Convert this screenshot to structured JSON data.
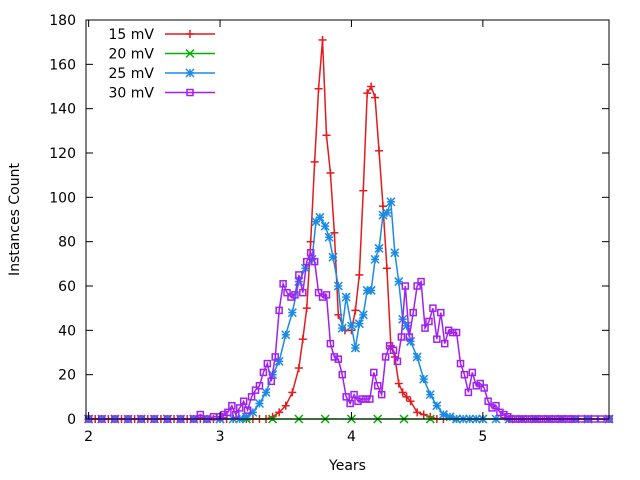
{
  "chart_data": {
    "type": "line",
    "title": "",
    "xlabel": "Years",
    "ylabel": "Instances Count",
    "xlim": [
      1.98,
      5.96
    ],
    "ylim": [
      0,
      180
    ],
    "x_ticks": [
      2,
      3,
      4,
      5
    ],
    "y_ticks": [
      0,
      20,
      40,
      60,
      80,
      100,
      120,
      140,
      160,
      180
    ],
    "grid": false,
    "legend_position": "top-left",
    "series": [
      {
        "name": "15 mV",
        "color": "#e41a1c",
        "marker": "plus",
        "x": [
          2.0,
          2.05,
          2.1,
          2.15,
          2.2,
          2.25,
          2.3,
          2.35,
          2.4,
          2.45,
          2.5,
          2.55,
          2.6,
          2.65,
          2.7,
          2.75,
          2.8,
          2.85,
          2.9,
          2.95,
          3.0,
          3.05,
          3.1,
          3.15,
          3.2,
          3.25,
          3.3,
          3.35,
          3.4,
          3.45,
          3.5,
          3.55,
          3.6,
          3.63,
          3.66,
          3.69,
          3.72,
          3.75,
          3.78,
          3.81,
          3.84,
          3.87,
          3.9,
          3.95,
          4.0,
          4.03,
          4.06,
          4.09,
          4.12,
          4.15,
          4.18,
          4.21,
          4.24,
          4.27,
          4.3,
          4.33,
          4.36,
          4.39,
          4.42,
          4.45,
          4.5,
          4.55,
          4.6,
          4.65,
          4.7,
          4.8,
          4.9,
          5.0,
          5.2,
          5.4,
          5.6,
          5.8,
          5.96
        ],
        "y": [
          0,
          0,
          0,
          0,
          0,
          0,
          0,
          0,
          0,
          0,
          0,
          0,
          0,
          0,
          0,
          0,
          0,
          0,
          0,
          0,
          0,
          0,
          0,
          0,
          0,
          0,
          0,
          0,
          1,
          3,
          6,
          12,
          23,
          36,
          50,
          80,
          116,
          149,
          171,
          128,
          111,
          84,
          47,
          40,
          40,
          49,
          65,
          103,
          147,
          150,
          145,
          121,
          96,
          68,
          33,
          28,
          16,
          12,
          10,
          8,
          3,
          2,
          1,
          0,
          0,
          0,
          0,
          0,
          0,
          0,
          0,
          0,
          0
        ]
      },
      {
        "name": "20 mV",
        "color": "#00b000",
        "marker": "cross",
        "x": [
          2.0,
          2.2,
          2.4,
          2.6,
          2.8,
          3.0,
          3.2,
          3.4,
          3.6,
          3.8,
          4.0,
          4.2,
          4.4,
          4.6,
          4.8,
          5.0,
          5.2,
          5.4,
          5.6,
          5.8,
          5.96
        ],
        "y": [
          0,
          0,
          0,
          0,
          0,
          0,
          0,
          0,
          0,
          0,
          0,
          0,
          0,
          0,
          0,
          0,
          0,
          0,
          0,
          0,
          0
        ]
      },
      {
        "name": "25 mV",
        "color": "#1a8ae6",
        "marker": "star",
        "x": [
          2.0,
          2.1,
          2.2,
          2.3,
          2.4,
          2.5,
          2.6,
          2.7,
          2.8,
          2.9,
          3.0,
          3.1,
          3.15,
          3.2,
          3.25,
          3.3,
          3.35,
          3.4,
          3.45,
          3.5,
          3.55,
          3.6,
          3.65,
          3.7,
          3.73,
          3.76,
          3.8,
          3.83,
          3.86,
          3.9,
          3.93,
          3.96,
          4.0,
          4.03,
          4.06,
          4.09,
          4.12,
          4.15,
          4.18,
          4.21,
          4.24,
          4.27,
          4.3,
          4.33,
          4.36,
          4.39,
          4.42,
          4.45,
          4.5,
          4.55,
          4.6,
          4.65,
          4.7,
          4.75,
          4.8,
          4.85,
          4.9,
          4.95,
          5.0,
          5.1,
          5.2,
          5.3,
          5.4,
          5.5,
          5.6,
          5.7,
          5.8,
          5.96
        ],
        "y": [
          0,
          0,
          0,
          0,
          0,
          0,
          0,
          0,
          0,
          0,
          0,
          0,
          0,
          1,
          3,
          7,
          12,
          20,
          26,
          38,
          48,
          62,
          68,
          72,
          89,
          91,
          87,
          82,
          73,
          60,
          41,
          55,
          42,
          32,
          43,
          47,
          58,
          58,
          72,
          77,
          92,
          93,
          98,
          75,
          62,
          45,
          42,
          35,
          28,
          18,
          11,
          6,
          2,
          1,
          0,
          0,
          0,
          0,
          0,
          0,
          0,
          0,
          0,
          0,
          0,
          0,
          0,
          0
        ]
      },
      {
        "name": "30 mV",
        "color": "#a020f0",
        "marker": "square",
        "x": [
          2.0,
          2.1,
          2.2,
          2.3,
          2.4,
          2.5,
          2.6,
          2.7,
          2.8,
          2.85,
          2.9,
          2.95,
          3.0,
          3.03,
          3.06,
          3.09,
          3.12,
          3.15,
          3.18,
          3.21,
          3.24,
          3.27,
          3.3,
          3.33,
          3.36,
          3.39,
          3.42,
          3.45,
          3.48,
          3.51,
          3.54,
          3.57,
          3.6,
          3.63,
          3.66,
          3.69,
          3.72,
          3.75,
          3.78,
          3.81,
          3.84,
          3.87,
          3.9,
          3.93,
          3.96,
          3.99,
          4.02,
          4.05,
          4.08,
          4.11,
          4.14,
          4.17,
          4.2,
          4.23,
          4.26,
          4.29,
          4.32,
          4.35,
          4.38,
          4.41,
          4.44,
          4.47,
          4.5,
          4.53,
          4.56,
          4.59,
          4.62,
          4.65,
          4.68,
          4.71,
          4.74,
          4.77,
          4.8,
          4.83,
          4.86,
          4.89,
          4.92,
          4.95,
          4.98,
          5.01,
          5.04,
          5.07,
          5.1,
          5.13,
          5.16,
          5.19,
          5.22,
          5.25,
          5.28,
          5.31,
          5.34,
          5.37,
          5.4,
          5.43,
          5.46,
          5.49,
          5.52,
          5.55,
          5.58,
          5.61,
          5.64,
          5.67,
          5.7,
          5.75,
          5.8,
          5.85,
          5.9,
          5.96
        ],
        "y": [
          0,
          0,
          0,
          0,
          0,
          0,
          0,
          0,
          0,
          2,
          0,
          1,
          1,
          2,
          3,
          6,
          2,
          5,
          8,
          4,
          10,
          13,
          15,
          21,
          25,
          17,
          28,
          49,
          61,
          57,
          55,
          56,
          65,
          57,
          71,
          75,
          71,
          57,
          55,
          56,
          34,
          28,
          27,
          20,
          10,
          7,
          11,
          8,
          9,
          9,
          9,
          21,
          15,
          11,
          28,
          33,
          31,
          26,
          37,
          60,
          37,
          48,
          60,
          62,
          41,
          44,
          50,
          36,
          48,
          34,
          40,
          39,
          39,
          25,
          20,
          12,
          21,
          15,
          16,
          14,
          8,
          5,
          6,
          3,
          2,
          1,
          0,
          0,
          0,
          0,
          0,
          0,
          0,
          0,
          0,
          0,
          0,
          0,
          0,
          0,
          0,
          0,
          0,
          0,
          0,
          0,
          0,
          0
        ]
      }
    ]
  }
}
